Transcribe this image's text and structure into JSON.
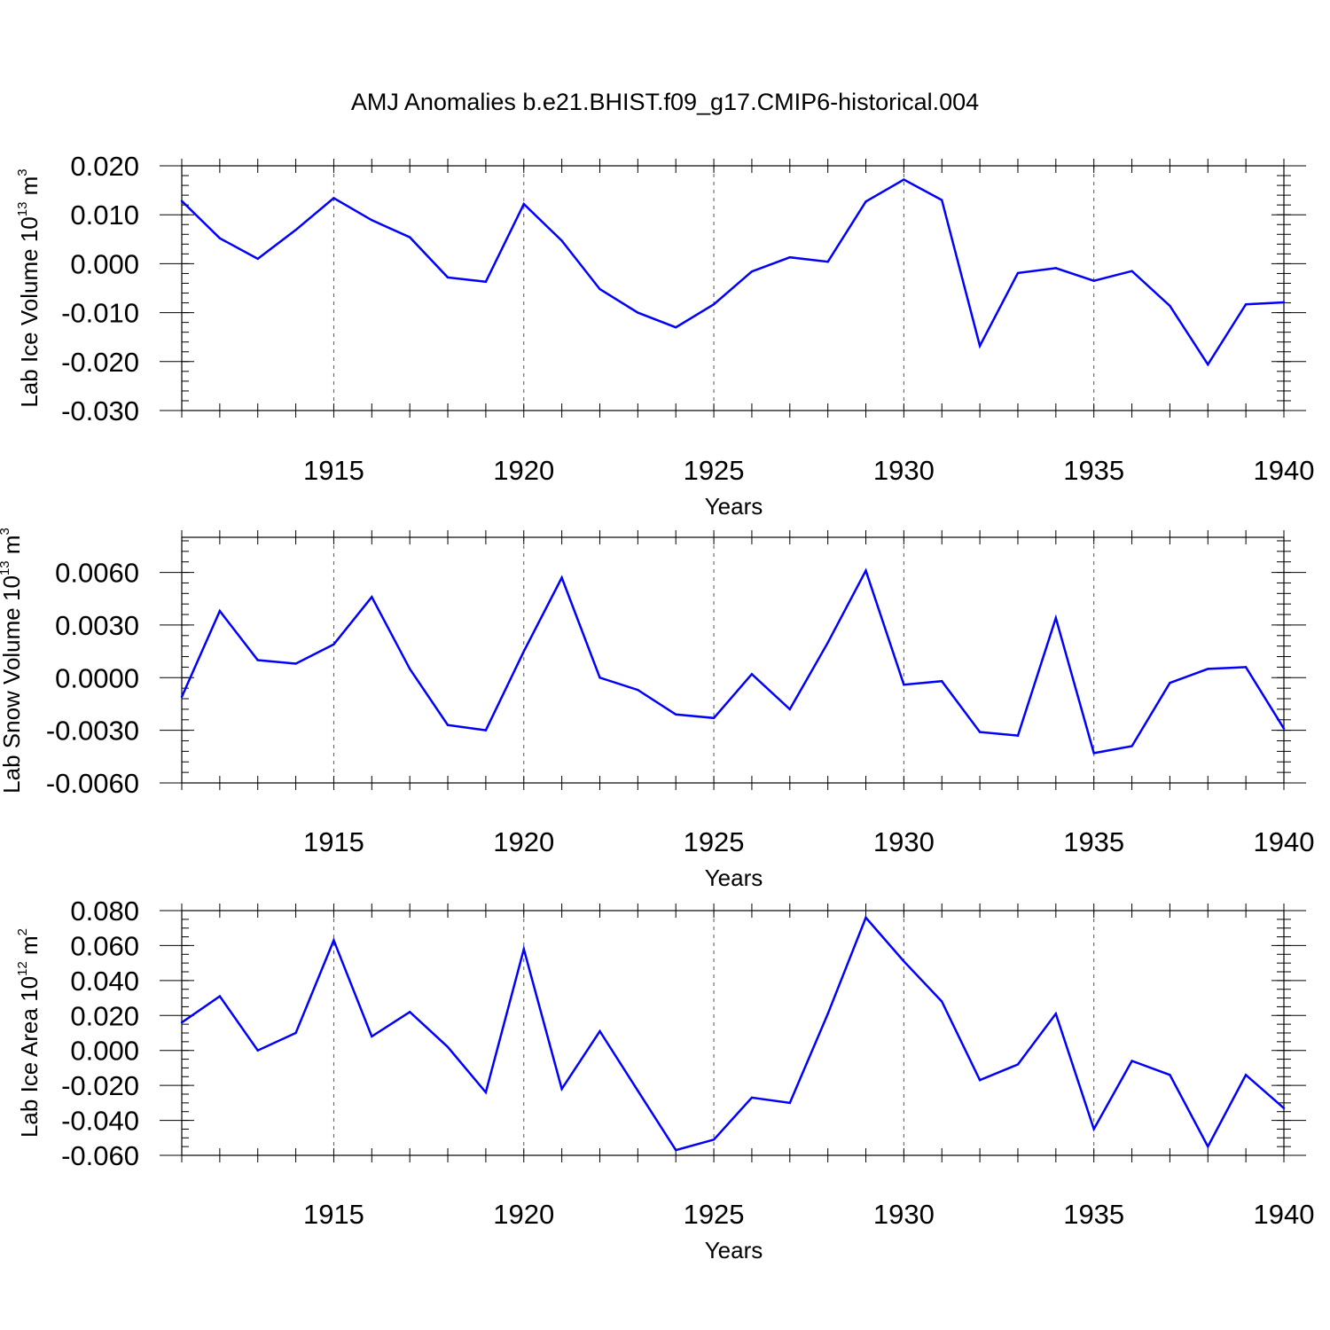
{
  "title": "AMJ Anomalies b.e21.BHIST.f09_g17.CMIP6-historical.004",
  "line_color": "#0000ff",
  "chart_data": [
    {
      "type": "line",
      "xlabel": "Years",
      "ylabel_main": "Lab Ice Volume 10",
      "ylabel_sup": "13",
      "ylabel_unit": " m",
      "ylabel_unit_sup": "3",
      "ylim": [
        -0.03,
        0.02
      ],
      "xlim": [
        1911,
        1940
      ],
      "y_ticks": [
        0.02,
        0.01,
        0.0,
        -0.01,
        -0.02,
        -0.03
      ],
      "y_tick_labels": [
        "0.020",
        "0.010",
        "0.000",
        "-0.010",
        "-0.020",
        "-0.030"
      ],
      "y_minor_step": 0.002,
      "x_ticks": [
        1915,
        1920,
        1925,
        1930,
        1935,
        1940
      ],
      "x_tick_labels": [
        "1915",
        "1920",
        "1925",
        "1930",
        "1935",
        "1940"
      ],
      "grid": "dashed vertical at labeled years",
      "x": [
        1911,
        1912,
        1913,
        1914,
        1915,
        1916,
        1917,
        1918,
        1919,
        1920,
        1921,
        1922,
        1923,
        1924,
        1925,
        1926,
        1927,
        1928,
        1929,
        1930,
        1931,
        1932,
        1933,
        1934,
        1935,
        1936,
        1937,
        1938,
        1939,
        1940
      ],
      "y": [
        0.0128,
        0.0052,
        0.001,
        0.0069,
        0.0134,
        0.0089,
        0.0054,
        -0.0028,
        -0.0037,
        0.0122,
        0.0047,
        -0.0052,
        -0.01,
        -0.013,
        -0.0083,
        -0.0016,
        0.0013,
        0.0004,
        0.0127,
        0.0172,
        0.013,
        -0.0168,
        -0.0019,
        -0.0009,
        -0.0035,
        -0.0015,
        -0.0086,
        -0.0206,
        -0.0083,
        -0.0079
      ]
    },
    {
      "type": "line",
      "xlabel": "Years",
      "ylabel_main": "Lab Snow Volume 10",
      "ylabel_sup": "13",
      "ylabel_unit": " m",
      "ylabel_unit_sup": "3",
      "ylim": [
        -0.006,
        0.008
      ],
      "xlim": [
        1911,
        1940
      ],
      "y_ticks": [
        0.006,
        0.003,
        0.0,
        -0.003,
        -0.006
      ],
      "y_tick_labels": [
        "0.0060",
        "0.0030",
        "0.0000",
        "-0.0030",
        "-0.0060"
      ],
      "y_minor_step": 0.0006,
      "x_ticks": [
        1915,
        1920,
        1925,
        1930,
        1935,
        1940
      ],
      "x_tick_labels": [
        "1915",
        "1920",
        "1925",
        "1930",
        "1935",
        "1940"
      ],
      "grid": "dashed vertical at labeled years",
      "x": [
        1911,
        1912,
        1913,
        1914,
        1915,
        1916,
        1917,
        1918,
        1919,
        1920,
        1921,
        1922,
        1923,
        1924,
        1925,
        1926,
        1927,
        1928,
        1929,
        1930,
        1931,
        1932,
        1933,
        1934,
        1935,
        1936,
        1937,
        1938,
        1939,
        1940
      ],
      "y": [
        -0.0011,
        0.0038,
        0.001,
        0.0008,
        0.0019,
        0.0046,
        0.0005,
        -0.0027,
        -0.003,
        0.0015,
        0.0057,
        0.0,
        -0.0007,
        -0.0021,
        -0.0023,
        0.0002,
        -0.0018,
        0.002,
        0.0061,
        -0.0004,
        -0.0002,
        -0.0031,
        -0.0033,
        0.0034,
        -0.0043,
        -0.0039,
        -0.0003,
        0.0005,
        0.0006,
        -0.0029
      ]
    },
    {
      "type": "line",
      "xlabel": "Years",
      "ylabel_main": "Lab Ice Area 10",
      "ylabel_sup": "12",
      "ylabel_unit": " m",
      "ylabel_unit_sup": "2",
      "ylim": [
        -0.06,
        0.08
      ],
      "xlim": [
        1911,
        1940
      ],
      "y_ticks": [
        0.08,
        0.06,
        0.04,
        0.02,
        0.0,
        -0.02,
        -0.04,
        -0.06
      ],
      "y_tick_labels": [
        "0.080",
        "0.060",
        "0.040",
        "0.020",
        "0.000",
        "-0.020",
        "-0.040",
        "-0.060"
      ],
      "y_minor_step": 0.005,
      "x_ticks": [
        1915,
        1920,
        1925,
        1930,
        1935,
        1940
      ],
      "x_tick_labels": [
        "1915",
        "1920",
        "1925",
        "1930",
        "1935",
        "1940"
      ],
      "grid": "dashed vertical at labeled years",
      "x": [
        1911,
        1912,
        1913,
        1914,
        1915,
        1916,
        1917,
        1918,
        1919,
        1920,
        1921,
        1922,
        1923,
        1924,
        1925,
        1926,
        1927,
        1928,
        1929,
        1930,
        1931,
        1932,
        1933,
        1934,
        1935,
        1936,
        1937,
        1938,
        1939,
        1940
      ],
      "y": [
        0.016,
        0.031,
        0.0,
        0.01,
        0.063,
        0.008,
        0.022,
        0.002,
        -0.024,
        0.058,
        -0.022,
        0.011,
        -0.023,
        -0.057,
        -0.051,
        -0.027,
        -0.03,
        0.021,
        0.076,
        0.051,
        0.028,
        -0.017,
        -0.008,
        0.021,
        -0.045,
        -0.006,
        -0.014,
        -0.055,
        -0.014,
        -0.033
      ]
    }
  ]
}
